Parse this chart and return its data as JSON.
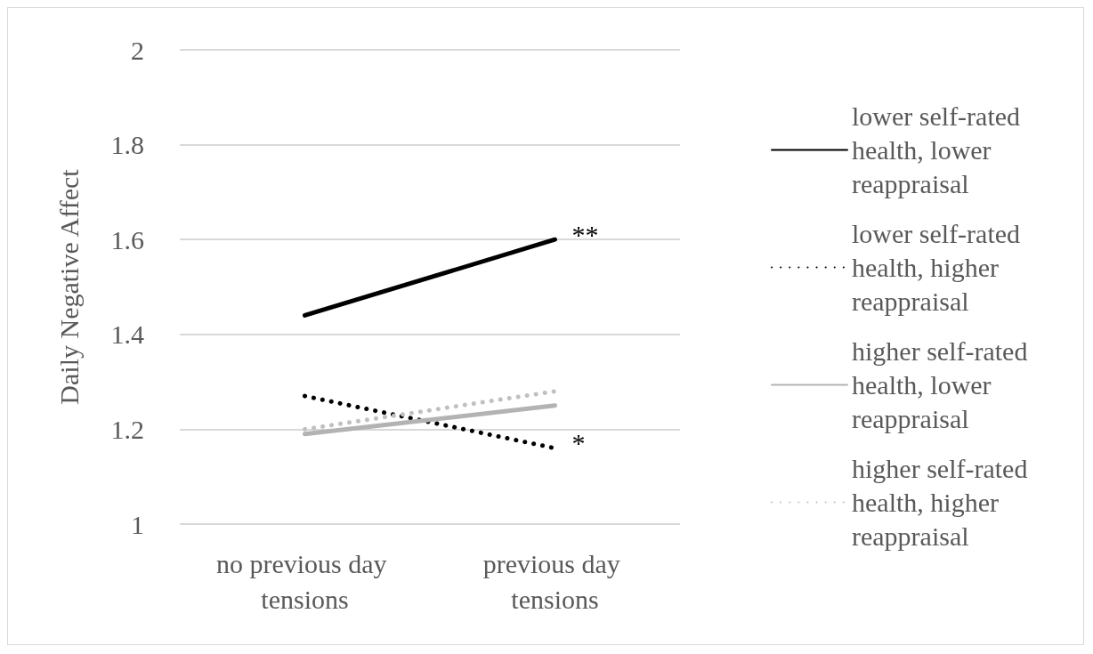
{
  "chart_data": {
    "type": "line",
    "ylabel": "Daily Negative Affect",
    "categories": [
      "no previous day tensions",
      "previous day tensions"
    ],
    "series": [
      {
        "name": "lower self-rated health, lower reappraisal",
        "color": "#000000",
        "line_style": "solid",
        "values": [
          1.44,
          1.6
        ]
      },
      {
        "name": "lower self-rated health, higher reappraisal",
        "color": "#000000",
        "line_style": "dotted",
        "values": [
          1.27,
          1.16
        ]
      },
      {
        "name": "higher self-rated health, lower reappraisal",
        "color": "#b3b3b3",
        "line_style": "solid",
        "values": [
          1.19,
          1.25
        ]
      },
      {
        "name": "higher self-rated health, higher reappraisal",
        "color": "#c0c0c0",
        "line_style": "dotted",
        "values": [
          1.2,
          1.28
        ]
      }
    ],
    "ylim": [
      1,
      2
    ],
    "yticks": [
      1,
      1.2,
      1.4,
      1.6,
      1.8,
      2
    ],
    "grid": "y",
    "legend": "right",
    "marker": "none",
    "annotations": [
      {
        "text": "**",
        "x": "previous day tensions",
        "y": 1.6
      },
      {
        "text": "*",
        "x": "previous day tensions",
        "y": 1.16
      }
    ]
  }
}
